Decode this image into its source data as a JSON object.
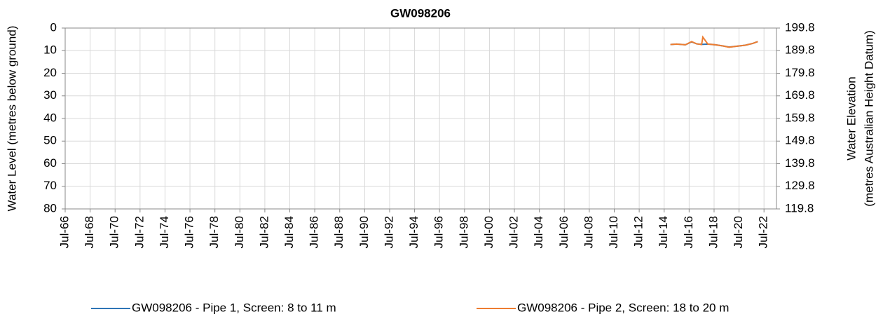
{
  "chart_data": {
    "type": "line",
    "title": "GW098206",
    "ylabel": "Water Level (metres below ground)",
    "y2label": [
      "Water Elevation",
      "(metres Australian Height Datum)"
    ],
    "x": [
      2015.0,
      2015.5,
      2016.2,
      2016.7,
      2017.1,
      2017.5,
      2017.6,
      2018.0,
      2018.6,
      2019.2,
      2019.7,
      2020.4,
      2021.0,
      2021.6,
      2022.0
    ],
    "series": [
      {
        "name": "GW098206 - Pipe 1, Screen: 8 to 11 m",
        "color": "#2e75b6",
        "values": [
          7.3,
          7.1,
          7.4,
          6.1,
          7.0,
          7.2,
          7.2,
          7.1,
          7.4,
          7.9,
          8.4,
          8.0,
          7.6,
          6.8,
          6.0
        ]
      },
      {
        "name": "GW098206 - Pipe 2, Screen: 18 to 20 m",
        "color": "#ed7d31",
        "values": [
          7.3,
          7.1,
          7.4,
          6.0,
          7.0,
          7.3,
          4.0,
          7.1,
          7.4,
          7.9,
          8.5,
          8.0,
          7.6,
          6.8,
          6.0
        ]
      }
    ],
    "xlim": [
      1966.5,
      2023.5
    ],
    "xticks": [
      {
        "value": 1966.5,
        "label": "Jul-66"
      },
      {
        "value": 1968.5,
        "label": "Jul-68"
      },
      {
        "value": 1970.5,
        "label": "Jul-70"
      },
      {
        "value": 1972.5,
        "label": "Jul-72"
      },
      {
        "value": 1974.5,
        "label": "Jul-74"
      },
      {
        "value": 1976.5,
        "label": "Jul-76"
      },
      {
        "value": 1978.5,
        "label": "Jul-78"
      },
      {
        "value": 1980.5,
        "label": "Jul-80"
      },
      {
        "value": 1982.5,
        "label": "Jul-82"
      },
      {
        "value": 1984.5,
        "label": "Jul-84"
      },
      {
        "value": 1986.5,
        "label": "Jul-86"
      },
      {
        "value": 1988.5,
        "label": "Jul-88"
      },
      {
        "value": 1990.5,
        "label": "Jul-90"
      },
      {
        "value": 1992.5,
        "label": "Jul-92"
      },
      {
        "value": 1994.5,
        "label": "Jul-94"
      },
      {
        "value": 1996.5,
        "label": "Jul-96"
      },
      {
        "value": 1998.5,
        "label": "Jul-98"
      },
      {
        "value": 2000.5,
        "label": "Jul-00"
      },
      {
        "value": 2002.5,
        "label": "Jul-02"
      },
      {
        "value": 2004.5,
        "label": "Jul-04"
      },
      {
        "value": 2006.5,
        "label": "Jul-06"
      },
      {
        "value": 2008.5,
        "label": "Jul-08"
      },
      {
        "value": 2010.5,
        "label": "Jul-10"
      },
      {
        "value": 2012.5,
        "label": "Jul-12"
      },
      {
        "value": 2014.5,
        "label": "Jul-14"
      },
      {
        "value": 2016.5,
        "label": "Jul-16"
      },
      {
        "value": 2018.5,
        "label": "Jul-18"
      },
      {
        "value": 2020.5,
        "label": "Jul-20"
      },
      {
        "value": 2022.5,
        "label": "Jul-22"
      }
    ],
    "ylim": [
      0,
      80
    ],
    "yticks": [
      0,
      10,
      20,
      30,
      40,
      50,
      60,
      70,
      80
    ],
    "y2lim": [
      199.8,
      119.8
    ],
    "y2ticks": [
      199.8,
      189.8,
      179.8,
      169.8,
      159.8,
      149.8,
      139.8,
      129.8,
      119.8
    ],
    "grid": true
  }
}
